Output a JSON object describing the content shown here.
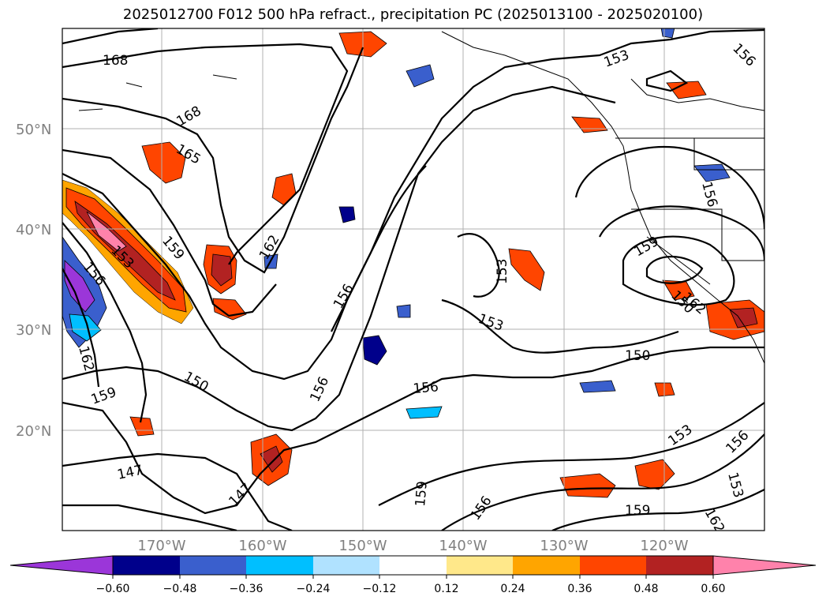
{
  "title": "2025012700 F012 500 hPa refract., precipitation PC (2025013100 - 2025020100)",
  "map": {
    "lat_labels": [
      "50°N",
      "40°N",
      "30°N",
      "20°N"
    ],
    "lon_labels": [
      "170°W",
      "160°W",
      "150°W",
      "140°W",
      "130°W",
      "120°W"
    ],
    "contour_labels": [
      "168",
      "168",
      "165",
      "159",
      "153",
      "156",
      "162",
      "162",
      "159",
      "150",
      "147",
      "147",
      "156",
      "156",
      "162",
      "153",
      "153",
      "156",
      "150",
      "153",
      "159",
      "156",
      "156",
      "153",
      "159",
      "162",
      "156",
      "153",
      "150",
      "156",
      "159"
    ],
    "gridline_color": "#b0b0b0",
    "contour_color": "#000000"
  },
  "colorbar": {
    "ticks": [
      "−0.60",
      "−0.48",
      "−0.36",
      "−0.24",
      "−0.12",
      "0.12",
      "0.24",
      "0.36",
      "0.48",
      "0.60"
    ],
    "colors": [
      "#9b36d9",
      "#00008b",
      "#3a5fcd",
      "#00bfff",
      "#b0e2ff",
      "#ffffff",
      "#ffe88a",
      "#ffa500",
      "#ff4500",
      "#b22222",
      "#ff82ab"
    ]
  }
}
